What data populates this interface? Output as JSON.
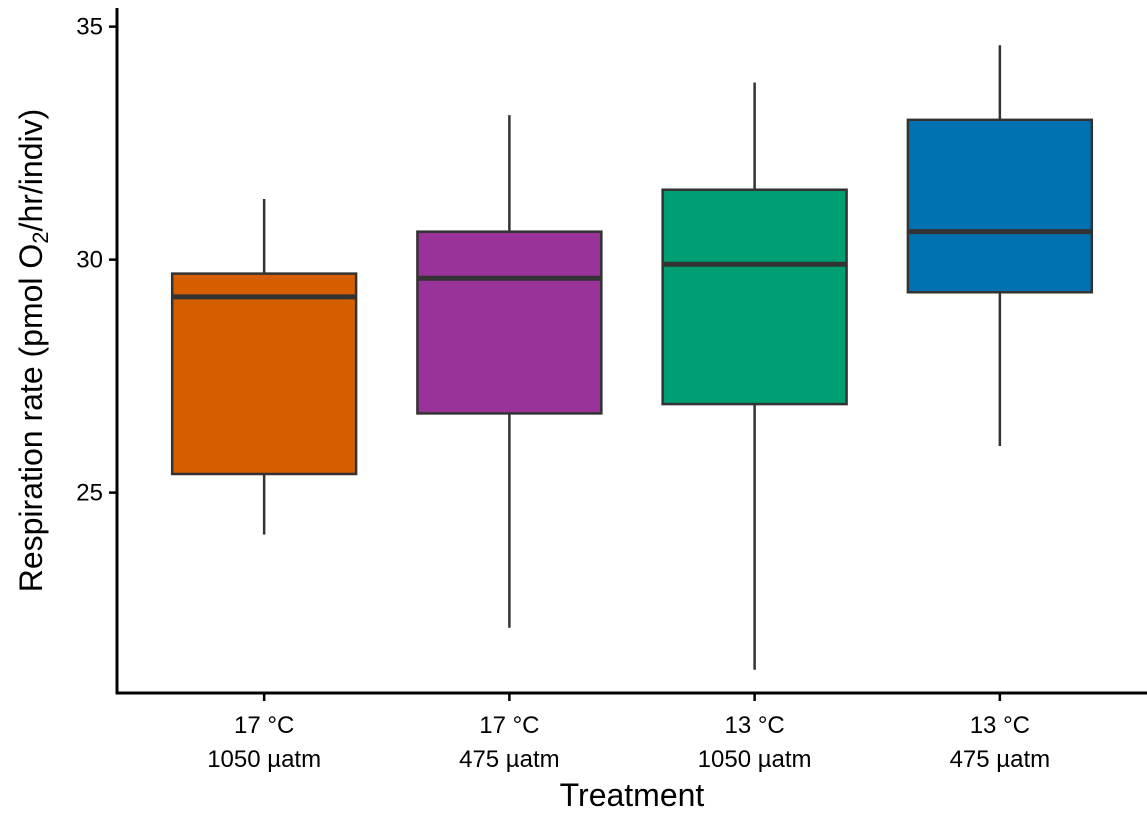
{
  "chart_data": {
    "type": "box",
    "title": "",
    "xlabel": "Treatment",
    "ylabel": "Respiration rate (pmol O2/hr/indiv)",
    "ylabel_parts": {
      "before": "Respiration rate (pmol O",
      "sub": "2",
      "after": "/hr/indiv)"
    },
    "ylim": [
      20.7,
      35.4
    ],
    "yticks": [
      {
        "value": 25,
        "label": "25"
      },
      {
        "value": 30,
        "label": "30"
      },
      {
        "value": 35,
        "label": "35"
      }
    ],
    "grid": false,
    "legend": "none",
    "categories": [
      {
        "line1": "17 °C",
        "line2": "1050 µatm",
        "color": "#D55E00",
        "min": 24.1,
        "q1": 25.4,
        "median": 29.2,
        "q3": 29.7,
        "max": 31.3
      },
      {
        "line1": "17 °C",
        "line2": "475 µatm",
        "color": "#993399",
        "min": 22.1,
        "q1": 26.7,
        "median": 29.6,
        "q3": 30.6,
        "max": 33.1
      },
      {
        "line1": "13 °C",
        "line2": "1050 µatm",
        "color": "#009E73",
        "min": 21.2,
        "q1": 26.9,
        "median": 29.9,
        "q3": 31.5,
        "max": 33.8
      },
      {
        "line1": "13 °C",
        "line2": "475 µatm",
        "color": "#0072B2",
        "min": 26.0,
        "q1": 29.3,
        "median": 30.6,
        "q3": 33.0,
        "max": 34.6
      }
    ]
  }
}
